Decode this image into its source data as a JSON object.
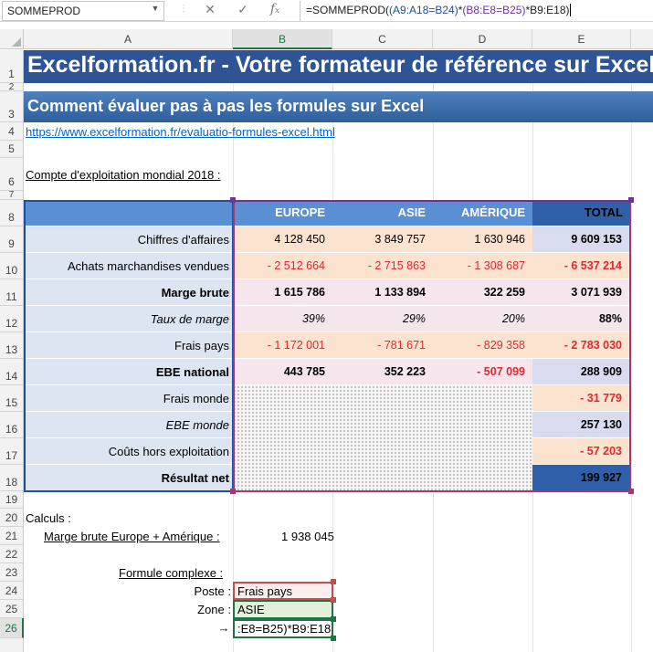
{
  "formula_bar": {
    "name_box": "SOMMEPROD",
    "cancel_icon": "x-icon",
    "enter_icon": "check-icon",
    "fx_icon": "fx-icon",
    "formula_prefix": "=SOMMEPROD(",
    "formula_seg1": "(A9:A18=B24)",
    "formula_star1": "*",
    "formula_seg2": "(B8:E8=B25)",
    "formula_seg3": "*B9:E18)"
  },
  "columns": [
    "A",
    "B",
    "C",
    "D",
    "E"
  ],
  "rows": [
    "1",
    "2",
    "3",
    "4",
    "5",
    "6",
    "7",
    "8",
    "9",
    "10",
    "11",
    "12",
    "13",
    "14",
    "15",
    "16",
    "17",
    "18",
    "19",
    "20",
    "21",
    "22",
    "23",
    "24",
    "25",
    "26"
  ],
  "sheet": {
    "title": "Excelformation.fr - Votre formateur de référence sur Excel",
    "subtitle": "Comment évaluer pas à pas les formules sur Excel",
    "link": "https://www.excelformation.fr/evaluatio-formules-excel.html",
    "section_title": "Compte d'exploitation mondial 2018 :"
  },
  "table": {
    "headers": [
      "EUROPE",
      "ASIE",
      "AMÉRIQUE",
      "TOTAL"
    ],
    "labels": [
      "Chiffres d'affaires",
      "Achats marchandises vendues",
      "Marge brute",
      "Taux de marge",
      "Frais pays",
      "EBE national",
      "Frais monde",
      "EBE monde",
      "Coûts hors exploitation",
      "Résultat net"
    ],
    "regional": [
      [
        "4 128 450",
        "3 849 757",
        "1 630 946"
      ],
      [
        "- 2 512 664",
        "- 2 715 863",
        "- 1 308 687"
      ],
      [
        "1 615 786",
        "1 133 894",
        "322 259"
      ],
      [
        "39%",
        "29%",
        "20%"
      ],
      [
        "- 1 172 001",
        "- 781 671",
        "- 829 358"
      ],
      [
        "443 785",
        "352 223",
        "- 507 099"
      ]
    ],
    "totals": [
      "9 609 153",
      "- 6 537 214",
      "3 071 939",
      "88%",
      "- 2 783 030",
      "288 909",
      "- 31 779",
      "257 130",
      "- 57 203",
      "199 927"
    ]
  },
  "calc": {
    "title": "Calculs :",
    "marge_label": "Marge brute Europe + Amérique :",
    "marge_value": "1 938 045",
    "formule_label": "Formule complexe :",
    "poste_label": "Poste :",
    "poste_value": "Frais pays",
    "zone_label": "Zone :",
    "zone_value": "ASIE",
    "arrow": "→",
    "edit_value": ":E8=B25)*B9:E18)"
  },
  "colors": {
    "title_band": "#2f5496",
    "header_blue": "#5b8fd3",
    "total_header": "#2f5fa8",
    "label_bg": "#dde5f3",
    "orange_bg": "#fbe3cf",
    "pink_bg": "#f4e6ec",
    "total_bg": "#d9dcee",
    "negative": "#e1282e",
    "ref_blue": "#1f4ea3",
    "ref_purple": "#7030a0",
    "ref_red": "#c0504d",
    "ref_green": "#217346"
  }
}
